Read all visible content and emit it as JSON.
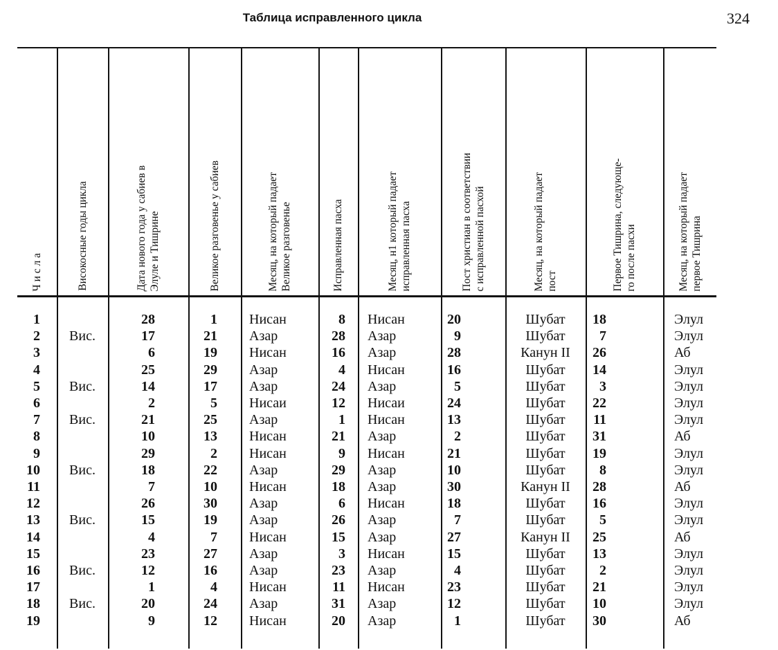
{
  "page": {
    "title": "Таблица исправленного цикла",
    "page_number": "324"
  },
  "table": {
    "headers": [
      [
        "Ч и с л а"
      ],
      [
        "Високосные годы цикла"
      ],
      [
        "Дата нового года у сабиев в",
        "Элуле и Тишрине"
      ],
      [
        "Великое разговенье у сабиев"
      ],
      [
        "Месяц, на который падает",
        "Великое разговенье"
      ],
      [
        "Исправленная пасха"
      ],
      [
        "Месяц, н1 который падает",
        "исправленная пасха"
      ],
      [
        "Пост христиан в соответствии",
        "с исправленной пасхой"
      ],
      [
        "Месяц, на который падает",
        "пост"
      ],
      [
        "Первое Тишрина, следующе-",
        "го после пасхи"
      ],
      [
        "Месяц, на который падает",
        "первое Тишрина"
      ]
    ],
    "rows": [
      [
        "1",
        "",
        "28",
        "1",
        "Нисан",
        "8",
        "Нисан",
        "20",
        "Шубат",
        "18",
        "Элул"
      ],
      [
        "2",
        "Вис.",
        "17",
        "21",
        "Азар",
        "28",
        "Азар",
        "9",
        "Шубат",
        "7",
        "Элул"
      ],
      [
        "3",
        "",
        "6",
        "19",
        "Нисан",
        "16",
        "Азар",
        "28",
        "Канун II",
        "26",
        "Аб"
      ],
      [
        "4",
        "",
        "25",
        "29",
        "Азар",
        "4",
        "Нисан",
        "16",
        "Шубат",
        "14",
        "Элул"
      ],
      [
        "5",
        "Вис.",
        "14",
        "17",
        "Азар",
        "24",
        "Азар",
        "5",
        "Шубат",
        "3",
        "Элул"
      ],
      [
        "6",
        "",
        "2",
        "5",
        "Нисаи",
        "12",
        "Нисаи",
        "24",
        "Шубат",
        "22",
        "Элул"
      ],
      [
        "7",
        "Вис.",
        "21",
        "25",
        "Азар",
        "1",
        "Нисан",
        "13",
        "Шубат",
        "11",
        "Элул"
      ],
      [
        "8",
        "",
        "10",
        "13",
        "Нисан",
        "21",
        "Азар",
        "2",
        "Шубат",
        "31",
        "Аб"
      ],
      [
        "9",
        "",
        "29",
        "2",
        "Нисан",
        "9",
        "Нисан",
        "21",
        "Шубат",
        "19",
        "Элул"
      ],
      [
        "10",
        "Вис.",
        "18",
        "22",
        "Азар",
        "29",
        "Азар",
        "10",
        "Шубат",
        "8",
        "Элул"
      ],
      [
        "11",
        "",
        "7",
        "10",
        "Нисан",
        "18",
        "Азар",
        "30",
        "Канун II",
        "28",
        "Аб"
      ],
      [
        "12",
        "",
        "26",
        "30",
        "Азар",
        "6",
        "Нисан",
        "18",
        "Шубат",
        "16",
        "Элул"
      ],
      [
        "13",
        "Вис.",
        "15",
        "19",
        "Азар",
        "26",
        "Азар",
        "7",
        "Шубат",
        "5",
        "Элул"
      ],
      [
        "14",
        "",
        "4",
        "7",
        "Нисан",
        "15",
        "Азар",
        "27",
        "Канун II",
        "25",
        "Аб"
      ],
      [
        "15",
        "",
        "23",
        "27",
        "Азар",
        "3",
        "Нисан",
        "15",
        "Шубат",
        "13",
        "Элул"
      ],
      [
        "16",
        "Вис.",
        "12",
        "16",
        "Азар",
        "23",
        "Азар",
        "4",
        "Шубат",
        "2",
        "Элул"
      ],
      [
        "17",
        "",
        "1",
        "4",
        "Нисан",
        "11",
        "Нисан",
        "23",
        "Шубат",
        "21",
        "Элул"
      ],
      [
        "18",
        "Вис.",
        "20",
        "24",
        "Азар",
        "31",
        "Азар",
        "12",
        "Шубат",
        "10",
        "Элул"
      ],
      [
        "19",
        "",
        "9",
        "12",
        "Нисан",
        "20",
        "Азар",
        "1",
        "Шубат",
        "30",
        "Аб"
      ]
    ]
  }
}
